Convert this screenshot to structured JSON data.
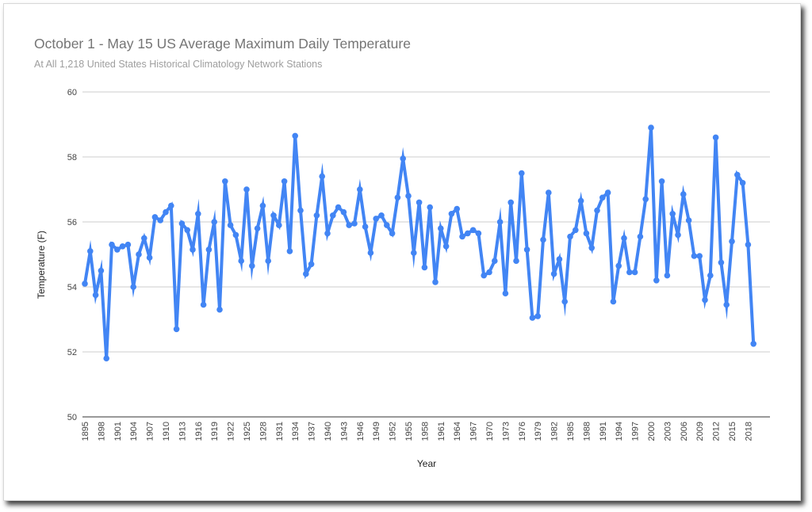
{
  "chart_data": {
    "type": "line",
    "title": "October 1 - May 15 US Average Maximum Daily Temperature",
    "subtitle": "At All 1,218 United States Historical Climatology Network Stations",
    "xlabel": "Year",
    "ylabel": "Temperature (F)",
    "ylim": [
      50,
      60
    ],
    "yticks": [
      "50",
      "52",
      "54",
      "56",
      "58",
      "60"
    ],
    "xticks": [
      "1895",
      "1898",
      "1901",
      "1904",
      "1907",
      "1910",
      "1913",
      "1916",
      "1919",
      "1922",
      "1925",
      "1928",
      "1931",
      "1934",
      "1937",
      "1940",
      "1943",
      "1946",
      "1949",
      "1952",
      "1955",
      "1958",
      "1961",
      "1964",
      "1967",
      "1970",
      "1973",
      "1976",
      "1979",
      "1982",
      "1985",
      "1988",
      "1991",
      "1994",
      "1997",
      "2000",
      "2003",
      "2006",
      "2009",
      "2012",
      "2015",
      "2018"
    ],
    "grid": true,
    "color": "#4285f4",
    "x_start": 1895,
    "series": [
      {
        "name": "",
        "values": [
          54.1,
          55.1,
          53.75,
          54.5,
          51.8,
          55.3,
          55.15,
          55.25,
          55.3,
          54.0,
          55.0,
          55.5,
          54.9,
          56.15,
          56.05,
          56.3,
          56.5,
          52.7,
          55.95,
          55.75,
          55.15,
          56.25,
          53.45,
          55.15,
          56.0,
          53.3,
          57.25,
          55.9,
          55.6,
          54.8,
          57.0,
          54.65,
          55.8,
          56.5,
          54.8,
          56.2,
          55.9,
          57.25,
          55.1,
          58.65,
          56.35,
          54.4,
          54.7,
          56.2,
          57.4,
          55.65,
          56.2,
          56.45,
          56.3,
          55.9,
          55.95,
          57.0,
          55.85,
          55.05,
          56.1,
          56.2,
          55.9,
          55.65,
          56.75,
          57.95,
          56.8,
          55.05,
          56.6,
          54.6,
          56.45,
          54.15,
          55.8,
          55.25,
          56.25,
          56.4,
          55.55,
          55.65,
          55.75,
          55.65,
          54.35,
          54.45,
          54.8,
          56.0,
          53.8,
          56.6,
          54.8,
          57.5,
          55.15,
          53.05,
          53.1,
          55.45,
          56.9,
          54.4,
          54.85,
          53.55,
          55.55,
          55.75,
          56.65,
          55.65,
          55.2,
          56.35,
          56.75,
          56.9,
          53.55,
          54.65,
          55.5,
          54.45,
          54.45,
          55.55,
          56.7,
          58.9,
          54.2,
          57.25,
          54.35,
          56.25,
          55.6,
          56.85,
          56.05,
          54.95,
          54.95,
          53.6,
          54.35,
          58.6,
          54.75,
          53.45,
          55.4,
          57.45,
          57.2,
          55.3,
          52.25
        ]
      }
    ]
  }
}
